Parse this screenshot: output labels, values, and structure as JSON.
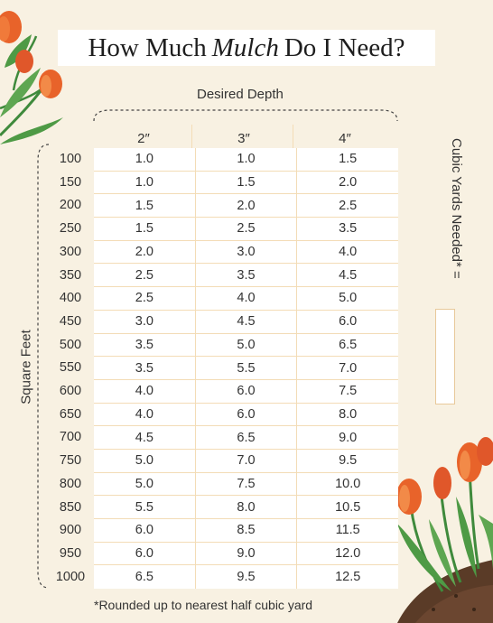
{
  "title": {
    "before": "How Much",
    "emphasis": "Mulch",
    "after": "Do I Need?"
  },
  "depth_label": "Desired Depth",
  "square_feet_label": "Square Feet",
  "cubic_yards_label": "Cubic Yards Needed* =",
  "footnote": "*Rounded up to nearest half cubic yard",
  "columns": [
    "2″",
    "3″",
    "4″"
  ],
  "rows": [
    {
      "sqft": "100",
      "values": [
        "1.0",
        "1.0",
        "1.5"
      ]
    },
    {
      "sqft": "150",
      "values": [
        "1.0",
        "1.5",
        "2.0"
      ]
    },
    {
      "sqft": "200",
      "values": [
        "1.5",
        "2.0",
        "2.5"
      ]
    },
    {
      "sqft": "250",
      "values": [
        "1.5",
        "2.5",
        "3.5"
      ]
    },
    {
      "sqft": "300",
      "values": [
        "2.0",
        "3.0",
        "4.0"
      ]
    },
    {
      "sqft": "350",
      "values": [
        "2.5",
        "3.5",
        "4.5"
      ]
    },
    {
      "sqft": "400",
      "values": [
        "2.5",
        "4.0",
        "5.0"
      ]
    },
    {
      "sqft": "450",
      "values": [
        "3.0",
        "4.5",
        "6.0"
      ]
    },
    {
      "sqft": "500",
      "values": [
        "3.5",
        "5.0",
        "6.5"
      ]
    },
    {
      "sqft": "550",
      "values": [
        "3.5",
        "5.5",
        "7.0"
      ]
    },
    {
      "sqft": "600",
      "values": [
        "4.0",
        "6.0",
        "7.5"
      ]
    },
    {
      "sqft": "650",
      "values": [
        "4.0",
        "6.0",
        "8.0"
      ]
    },
    {
      "sqft": "700",
      "values": [
        "4.5",
        "6.5",
        "9.0"
      ]
    },
    {
      "sqft": "750",
      "values": [
        "5.0",
        "7.0",
        "9.5"
      ]
    },
    {
      "sqft": "800",
      "values": [
        "5.0",
        "7.5",
        "10.0"
      ]
    },
    {
      "sqft": "850",
      "values": [
        "5.5",
        "8.0",
        "10.5"
      ]
    },
    {
      "sqft": "900",
      "values": [
        "6.0",
        "8.5",
        "11.5"
      ]
    },
    {
      "sqft": "950",
      "values": [
        "6.0",
        "9.0",
        "12.0"
      ]
    },
    {
      "sqft": "1000",
      "values": [
        "6.5",
        "9.5",
        "12.5"
      ]
    }
  ],
  "decorations": {
    "top_left": "tulips-illustration",
    "bottom_right": "tulips-illustration",
    "accent_color": "#e8632a",
    "leaf_color": "#3f8a3c",
    "grid_line_color": "#f3dcb6",
    "background_color": "#f8f1e2"
  }
}
